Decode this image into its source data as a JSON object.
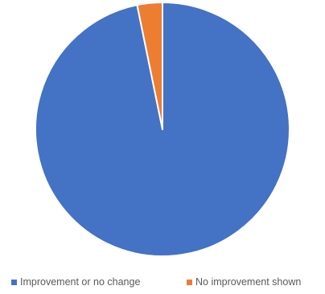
{
  "chart_data": {
    "type": "pie",
    "title": "",
    "series": [
      {
        "name": "",
        "slices": [
          {
            "label": "Improvement or no change",
            "value": 96.8,
            "color": "#4472C4"
          },
          {
            "label": "No improvement shown",
            "value": 3.2,
            "color": "#ED7D31"
          }
        ]
      }
    ],
    "legend": {
      "placement": "bottom"
    }
  }
}
